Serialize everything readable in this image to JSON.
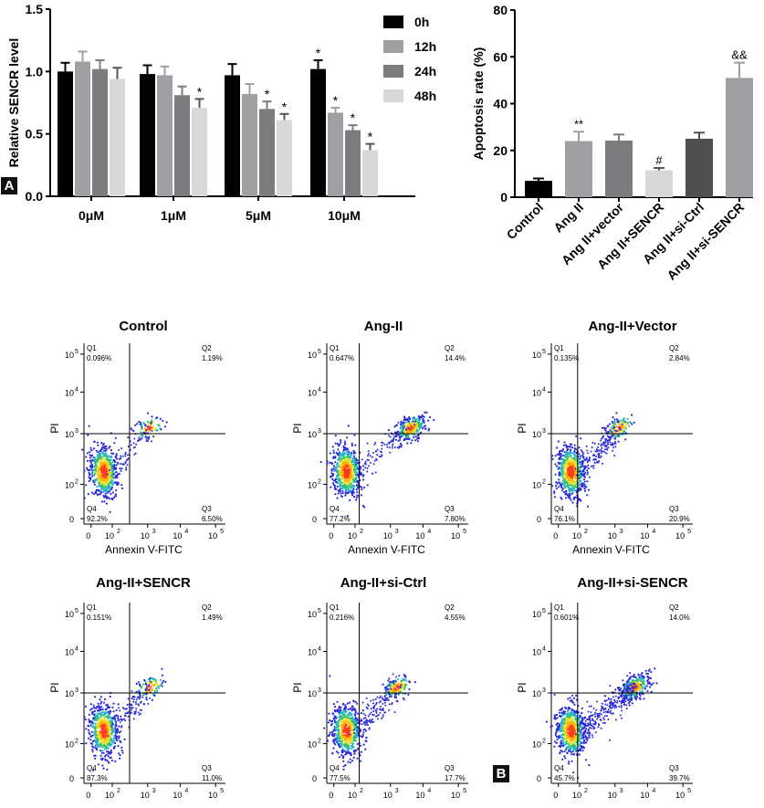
{
  "panel_labels": {
    "a": "A",
    "b": "B"
  },
  "chart_data": [
    {
      "type": "bar",
      "ylabel": "Relative SENCR level",
      "ylim": [
        0,
        1.5
      ],
      "yticks": [
        "0.0",
        "0.5",
        "1.0",
        "1.5"
      ],
      "categories": [
        "0μM",
        "1μM",
        "5μM",
        "10μM"
      ],
      "legend_placement": "top-right",
      "series": [
        {
          "name": "0h",
          "color": "#000000",
          "values": [
            1.0,
            0.98,
            0.97,
            1.02
          ],
          "errors": [
            0.07,
            0.07,
            0.09,
            0.07
          ],
          "marks": [
            "",
            "",
            "",
            "*"
          ]
        },
        {
          "name": "12h",
          "color": "#a0a0a4",
          "values": [
            1.08,
            0.97,
            0.82,
            0.67
          ],
          "errors": [
            0.08,
            0.07,
            0.08,
            0.04
          ],
          "marks": [
            "",
            "",
            "",
            "*"
          ]
        },
        {
          "name": "24h",
          "color": "#7c7c7e",
          "values": [
            1.02,
            0.81,
            0.7,
            0.53
          ],
          "errors": [
            0.07,
            0.07,
            0.06,
            0.04
          ],
          "marks": [
            "",
            "",
            "*",
            "*"
          ]
        },
        {
          "name": "48h",
          "color": "#d8d8d8",
          "values": [
            0.94,
            0.71,
            0.61,
            0.37
          ],
          "errors": [
            0.09,
            0.07,
            0.05,
            0.05
          ],
          "marks": [
            "",
            "*",
            "*",
            "*"
          ]
        }
      ]
    },
    {
      "type": "bar",
      "ylabel": "Apoptosis rate (%)",
      "ylim": [
        0,
        80
      ],
      "yticks": [
        "0",
        "20",
        "40",
        "60",
        "80"
      ],
      "categories": [
        "Control",
        "Ang II",
        "Ang II+vector",
        "Ang II+SENCR",
        "Ang II+si-Ctrl",
        "Ang II+si-SENCR"
      ],
      "values": [
        7.0,
        24.0,
        24.2,
        11.5,
        25.0,
        51.0
      ],
      "errors": [
        1.0,
        4.0,
        2.6,
        1.0,
        2.6,
        6.5
      ],
      "colors": [
        "#000000",
        "#a0a0a4",
        "#7c7c7e",
        "#d8d8d8",
        "#505050",
        "#a0a0a4"
      ],
      "marks": [
        "",
        "**",
        "",
        "#",
        "",
        "&&"
      ]
    }
  ],
  "flow_panels": [
    {
      "title": "Control",
      "q1": "0.096%",
      "q2": "1.19%",
      "q3": "6.50%",
      "q4": "92.2%",
      "qlabels": [
        "Q1",
        "Q2",
        "Q3",
        "Q4"
      ],
      "xlabel": "Annexin V-FITC",
      "ylabel": "PI"
    },
    {
      "title": "Ang-II",
      "q1": "0.647%",
      "q2": "14.4%",
      "q3": "7.80%",
      "q4": "77.2%",
      "qlabels": [
        "Q1",
        "Q2",
        "Q3",
        "Q4"
      ],
      "xlabel": "Annexin V-FITC",
      "ylabel": "PI"
    },
    {
      "title": "Ang-II+Vector",
      "q1": "0.135%",
      "q2": "2.84%",
      "q3": "20.9%",
      "q4": "76.1%",
      "qlabels": [
        "Q1",
        "Q2",
        "Q3",
        "Q4"
      ],
      "xlabel": "Annexin V-FITC",
      "ylabel": "PI"
    },
    {
      "title": "Ang-II+SENCR",
      "q1": "0.151%",
      "q2": "1.49%",
      "q3": "11.0%",
      "q4": "87.3%",
      "qlabels": [
        "Q1",
        "Q2",
        "Q3",
        "Q4"
      ],
      "xlabel": "Annexin V-FITC",
      "ylabel": "PI"
    },
    {
      "title": "Ang-II+si-Ctrl",
      "q1": "0.216%",
      "q2": "4.55%",
      "q3": "17.7%",
      "q4": "77.5%",
      "qlabels": [
        "Q1",
        "Q2",
        "Q3",
        "Q4"
      ],
      "xlabel": "Annexin V-FITC",
      "ylabel": "PI"
    },
    {
      "title": "Ang-II+si-SENCR",
      "q1": "0.601%",
      "q2": "14.0%",
      "q3": "39.7%",
      "q4": "45.7%",
      "qlabels": [
        "Q1",
        "Q2",
        "Q3",
        "Q4"
      ],
      "xlabel": "Annexin V-FITC",
      "ylabel": "PI"
    }
  ],
  "flow_axis": {
    "log_ticks": [
      "0",
      "10",
      "10",
      "10",
      "10"
    ],
    "log_exponents": [
      "",
      "2",
      "3",
      "4",
      "5"
    ],
    "y_ticks": [
      "0",
      "10",
      "10",
      "10",
      "10"
    ],
    "y_exponents": [
      "",
      "2",
      "3",
      "4",
      "5"
    ]
  }
}
